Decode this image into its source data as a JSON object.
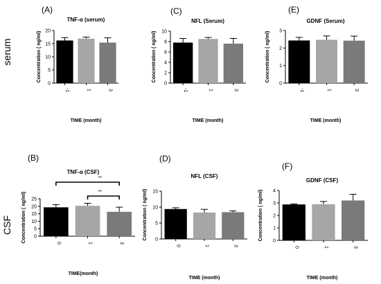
{
  "row_labels": [
    "serum",
    "CSF"
  ],
  "chart_data": [
    {
      "panel": "(A)",
      "type": "bar",
      "title": "TNF-α (serum)",
      "xlabel": "TIME (month)",
      "ylabel": "Concentration ( ng/ml)",
      "categories": [
        "-1",
        "1",
        "3"
      ],
      "values": [
        16.2,
        16.9,
        15.4
      ],
      "errors": [
        1.1,
        0.6,
        1.8
      ],
      "ylim": [
        0,
        20
      ],
      "yticks": [
        "0",
        "5",
        "10",
        "15",
        "20"
      ],
      "bar_colors": [
        "#000000",
        "#a6a6a6",
        "#7a7a7a"
      ],
      "significance": []
    },
    {
      "panel": "(C)",
      "type": "bar",
      "title": "NFL (Serum)",
      "xlabel": "TIME (month)",
      "ylabel": "Concentration ( ng/ml)",
      "categories": [
        "-1",
        "1",
        "3"
      ],
      "values": [
        7.8,
        8.5,
        7.6
      ],
      "errors": [
        0.8,
        0.3,
        1.0
      ],
      "ylim": [
        0,
        10
      ],
      "yticks": [
        "0",
        "2",
        "4",
        "6",
        "8",
        "10"
      ],
      "bar_colors": [
        "#000000",
        "#a6a6a6",
        "#7a7a7a"
      ],
      "significance": []
    },
    {
      "panel": "(E)",
      "type": "bar",
      "title": "GDNF (Serum)",
      "xlabel": "TIME (month)",
      "ylabel": "Concentration ( ng/ml)",
      "categories": [
        "-1",
        "1",
        "3"
      ],
      "values": [
        2.43,
        2.47,
        2.42
      ],
      "errors": [
        0.18,
        0.22,
        0.26
      ],
      "ylim": [
        0,
        3
      ],
      "yticks": [
        "0",
        "1",
        "2",
        "3"
      ],
      "bar_colors": [
        "#000000",
        "#a6a6a6",
        "#7a7a7a"
      ],
      "significance": []
    },
    {
      "panel": "(B)",
      "type": "bar",
      "title": "TNF-α (CSF)",
      "xlabel": "TIME(month)",
      "ylabel": "Concentration ( ng/ml)",
      "categories": [
        "0",
        "1",
        "3"
      ],
      "values": [
        19.3,
        20.3,
        16.3
      ],
      "errors": [
        1.8,
        1.7,
        3.1
      ],
      "ylim": [
        0,
        25
      ],
      "yticks": [
        "0",
        "5",
        "10",
        "15",
        "20",
        "25"
      ],
      "bar_colors": [
        "#000000",
        "#a6a6a6",
        "#7a7a7a"
      ],
      "significance": [
        {
          "from": 0,
          "to": 2,
          "label": "**"
        },
        {
          "from": 1,
          "to": 2,
          "label": "**"
        }
      ]
    },
    {
      "panel": "(D)",
      "type": "bar",
      "title": "NFL (CSF)",
      "xlabel": "TIME (month)",
      "ylabel": "Concentration ( ng/ml)",
      "categories": [
        "0",
        "1",
        "3"
      ],
      "values": [
        9.4,
        8.3,
        8.4
      ],
      "errors": [
        0.4,
        1.0,
        0.4
      ],
      "ylim": [
        0,
        15
      ],
      "yticks": [
        "0",
        "5",
        "10",
        "15"
      ],
      "bar_colors": [
        "#000000",
        "#a6a6a6",
        "#7a7a7a"
      ],
      "significance": []
    },
    {
      "panel": "(F)",
      "type": "bar",
      "title": "GDNF (CSF)",
      "xlabel": "TIME (month)",
      "ylabel": "Concentration ( ng/ml)",
      "categories": [
        "0",
        "1",
        "3"
      ],
      "values": [
        2.88,
        2.9,
        3.2
      ],
      "errors": [
        0.04,
        0.22,
        0.5
      ],
      "ylim": [
        0,
        4
      ],
      "yticks": [
        "0",
        "1",
        "2",
        "3",
        "4"
      ],
      "bar_colors": [
        "#000000",
        "#a6a6a6",
        "#7a7a7a"
      ],
      "significance": []
    }
  ]
}
